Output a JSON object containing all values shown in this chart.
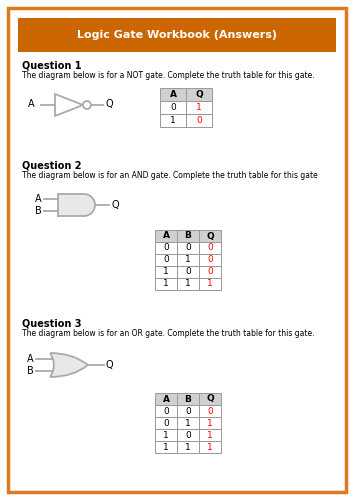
{
  "title": "Logic Gate Workbook (Answers)",
  "title_bg": "#cc6600",
  "title_color": "#ffffff",
  "border_color": "#e07820",
  "bg_color": "#ffffff",
  "q1_label": "Question 1",
  "q1_desc": "The diagram below is for a NOT gate. Complete the truth table for this gate.",
  "q2_label": "Question 2",
  "q2_desc": "The diagram below is for an AND gate. Complete the truth table for this gate",
  "q3_label": "Question 3",
  "q3_desc": "The diagram below is for an OR gate. Complete the truth table for this gate.",
  "not_table": {
    "headers": [
      "A",
      "Q"
    ],
    "rows": [
      [
        "0",
        "1"
      ],
      [
        "1",
        "0"
      ]
    ],
    "red_cols": [
      1
    ]
  },
  "and_table": {
    "headers": [
      "A",
      "B",
      "Q"
    ],
    "rows": [
      [
        "0",
        "0",
        "0"
      ],
      [
        "0",
        "1",
        "0"
      ],
      [
        "1",
        "0",
        "0"
      ],
      [
        "1",
        "1",
        "1"
      ]
    ],
    "red_cols": [
      2
    ]
  },
  "or_table": {
    "headers": [
      "A",
      "B",
      "Q"
    ],
    "rows": [
      [
        "0",
        "0",
        "0"
      ],
      [
        "0",
        "1",
        "1"
      ],
      [
        "1",
        "0",
        "1"
      ],
      [
        "1",
        "1",
        "1"
      ]
    ],
    "red_cols": [
      2
    ]
  },
  "gate_color": "#aaaaaa",
  "gate_fill": "#e8e8e8"
}
